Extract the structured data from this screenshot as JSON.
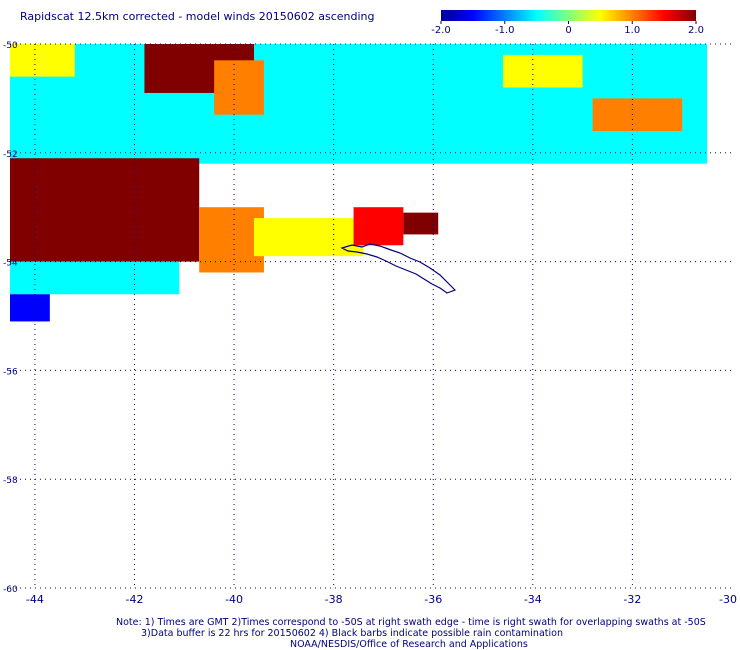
{
  "title": "Rapidscat 12.5km corrected - model winds 20150602 ascending",
  "colorbar": {
    "min": -2.0,
    "max": 2.0,
    "tick_labels": [
      "-2.0",
      "-1.0",
      "0",
      "1.0",
      "2.0"
    ],
    "tick_values": [
      -2.0,
      -1.0,
      0,
      1.0,
      2.0
    ]
  },
  "notes": {
    "line1": "Note: 1) Times are GMT 2)Times correspond to -50S at right swath edge - time is right swath for overlapping swaths at -50S",
    "line2": "3)Data buffer is 22 hrs for 20150602 4) Black barbs indicate possible rain contamination",
    "line3": "NOAA/NESDIS/Office of Research and Applications"
  },
  "chart_data": {
    "type": "heatmap",
    "title": "Rapidscat 12.5km corrected - model winds 20150602 ascending",
    "xlabel": "",
    "ylabel": "",
    "xlim": [
      -44.5,
      -30
    ],
    "ylim": [
      -60,
      -50
    ],
    "x_ticks": [
      -44,
      -42,
      -40,
      -38,
      -36,
      -34,
      -32,
      -30
    ],
    "x_tick_labels": [
      "-44",
      "-42",
      "-40",
      "-38",
      "-36",
      "-34",
      "-32",
      "-30"
    ],
    "y_ticks": [
      -50,
      -52,
      -54,
      -56,
      -58,
      -60
    ],
    "y_tick_labels": [
      "-50",
      "-52",
      "-54",
      "-56",
      "-58",
      "-60"
    ],
    "grid": true,
    "grid_style": "dotted",
    "value_range": [
      -2.0,
      2.0
    ],
    "colorscale": [
      "#000090",
      "#0000ff",
      "#0080ff",
      "#00ffff",
      "#80ff80",
      "#ffff00",
      "#ff8000",
      "#ff0000",
      "#800000"
    ],
    "land_outline_color": "#000080",
    "regions": [
      {
        "x": [
          -44.5,
          -30.5
        ],
        "y": [
          -52.2,
          -50.0
        ],
        "value": -0.3
      },
      {
        "x": [
          -41.8,
          -39.6
        ],
        "y": [
          -50.9,
          -50.0
        ],
        "value": 2.0
      },
      {
        "x": [
          -44.5,
          -43.2
        ],
        "y": [
          -50.6,
          -50.0
        ],
        "value": 0.6
      },
      {
        "x": [
          -40.4,
          -39.4
        ],
        "y": [
          -51.3,
          -50.3
        ],
        "value": 1.1
      },
      {
        "x": [
          -32.8,
          -31.0
        ],
        "y": [
          -51.6,
          -51.0
        ],
        "value": 0.9
      },
      {
        "x": [
          -34.6,
          -33.0
        ],
        "y": [
          -50.8,
          -50.2
        ],
        "value": 0.7
      },
      {
        "x": [
          -44.5,
          -40.7
        ],
        "y": [
          -54.0,
          -52.1
        ],
        "value": 2.0
      },
      {
        "x": [
          -40.7,
          -39.4
        ],
        "y": [
          -54.2,
          -53.0
        ],
        "value": 1.2
      },
      {
        "x": [
          -39.6,
          -37.4
        ],
        "y": [
          -53.9,
          -53.2
        ],
        "value": 0.4
      },
      {
        "x": [
          -37.6,
          -36.6
        ],
        "y": [
          -53.7,
          -53.0
        ],
        "value": 1.3
      },
      {
        "x": [
          -36.6,
          -35.9
        ],
        "y": [
          -53.5,
          -53.1
        ],
        "value": 2.0
      },
      {
        "x": [
          -44.5,
          -41.1
        ],
        "y": [
          -54.6,
          -54.0
        ],
        "value": -0.6
      },
      {
        "x": [
          -44.5,
          -43.7
        ],
        "y": [
          -55.1,
          -54.6
        ],
        "value": -1.6
      }
    ]
  }
}
